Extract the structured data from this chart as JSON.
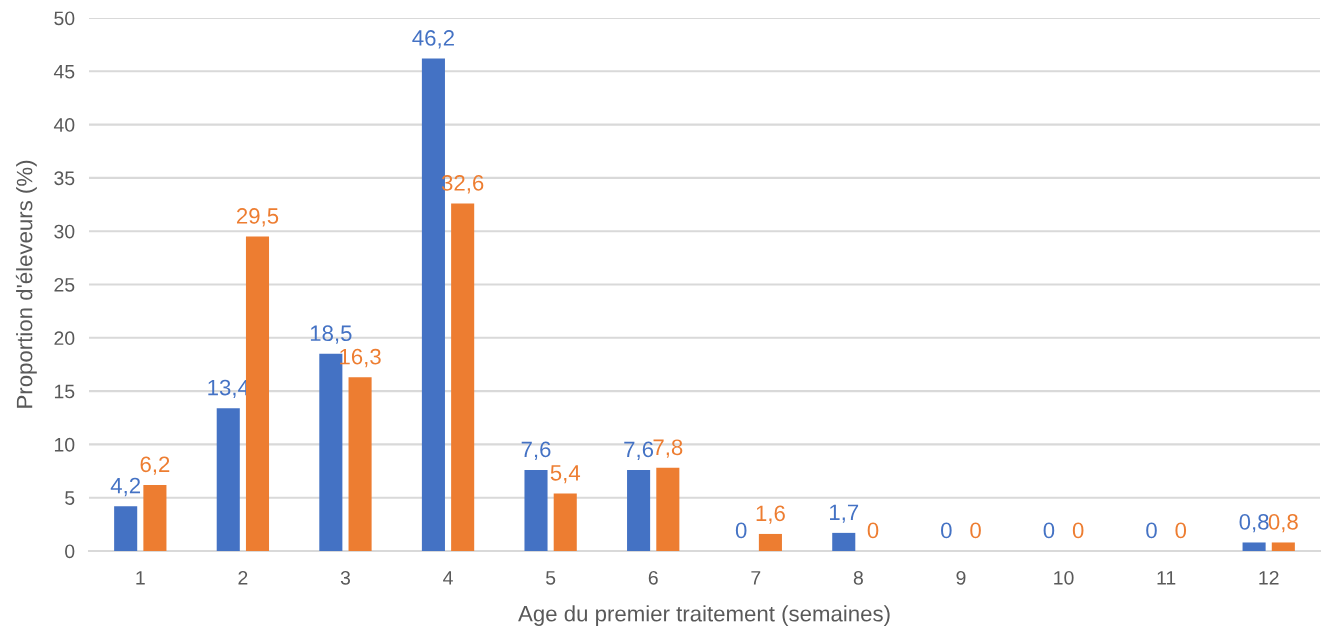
{
  "chart_data": {
    "type": "bar",
    "xlabel": "Age du premier traitement (semaines)",
    "ylabel": "Proportion d'éleveurs (%)",
    "categories": [
      "1",
      "2",
      "3",
      "4",
      "5",
      "6",
      "7",
      "8",
      "9",
      "10",
      "11",
      "12"
    ],
    "series": [
      {
        "color": "#4472c4",
        "values": [
          4.2,
          13.4,
          18.5,
          46.2,
          7.6,
          7.6,
          0,
          1.7,
          0,
          0,
          0,
          0.8
        ],
        "value_labels": [
          "4,2",
          "13,4",
          "18,5",
          "46,2",
          "7,6",
          "7,6",
          "0",
          "1,7",
          "0",
          "0",
          "0",
          "0,8"
        ]
      },
      {
        "color": "#ed7d31",
        "values": [
          6.2,
          29.5,
          16.3,
          32.6,
          5.4,
          7.8,
          1.6,
          0,
          0,
          0,
          0,
          0.8
        ],
        "value_labels": [
          "6,2",
          "29,5",
          "16,3",
          "32,6",
          "5,4",
          "7,8",
          "1,6",
          "0",
          "0",
          "0",
          "0",
          "0,8"
        ]
      }
    ],
    "ylim": [
      0,
      50
    ],
    "yticks": [
      0,
      5,
      10,
      15,
      20,
      25,
      30,
      35,
      40,
      45,
      50
    ],
    "grid": "y"
  }
}
